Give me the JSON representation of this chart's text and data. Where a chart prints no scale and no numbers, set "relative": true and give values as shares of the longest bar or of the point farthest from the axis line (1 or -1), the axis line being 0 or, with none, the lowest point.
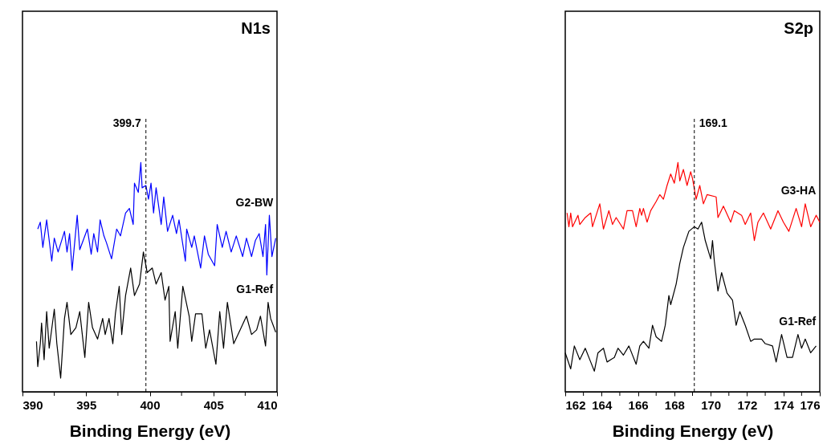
{
  "chart_data": [
    {
      "type": "line",
      "title": "N1s",
      "xlabel": "Binding Energy (eV)",
      "relative": true,
      "grid": false,
      "line_style": "solid",
      "marker": "none",
      "xlim": [
        390,
        410
      ],
      "xticks": [
        390,
        {
          "value": 392.5,
          "label": null
        },
        395,
        {
          "value": 397.5,
          "label": null
        },
        400,
        {
          "value": 402.5,
          "label": null
        },
        405,
        {
          "value": 407.5,
          "label": null
        },
        410
      ],
      "ref_lines": [
        {
          "axis": "x",
          "value": 399.7,
          "label": "399.7",
          "line_style": "dashed",
          "color": "#000000"
        }
      ],
      "series": [
        {
          "name": "G2-BW",
          "color": "#0000ff",
          "x": [
            391.2,
            391.4,
            391.6,
            391.9,
            392.3,
            392.5,
            392.8,
            393.3,
            393.5,
            393.7,
            393.9,
            394.3,
            394.5,
            395.1,
            395.4,
            395.6,
            395.9,
            396.1,
            396.4,
            396.6,
            397.0,
            397.4,
            397.7,
            398.1,
            398.4,
            398.7,
            398.8,
            399.1,
            399.3,
            399.4,
            399.7,
            399.9,
            400.1,
            400.3,
            400.5,
            400.9,
            401.1,
            401.4,
            401.8,
            402.1,
            402.3,
            402.8,
            402.9,
            403.3,
            403.5,
            404.0,
            404.3,
            404.6,
            405.1,
            405.3,
            405.7,
            406.0,
            406.4,
            406.8,
            407.3,
            407.6,
            408.0,
            408.3,
            408.6,
            408.9,
            409.1,
            409.2,
            409.4,
            409.6,
            409.9
          ],
          "values": [
            0.71,
            0.74,
            0.63,
            0.75,
            0.57,
            0.67,
            0.61,
            0.7,
            0.61,
            0.69,
            0.53,
            0.77,
            0.62,
            0.71,
            0.6,
            0.69,
            0.61,
            0.75,
            0.68,
            0.65,
            0.58,
            0.71,
            0.68,
            0.78,
            0.8,
            0.73,
            0.91,
            0.87,
            1.0,
            0.89,
            0.9,
            0.84,
            0.91,
            0.78,
            0.89,
            0.73,
            0.85,
            0.7,
            0.77,
            0.69,
            0.75,
            0.57,
            0.71,
            0.63,
            0.68,
            0.54,
            0.68,
            0.6,
            0.55,
            0.73,
            0.63,
            0.7,
            0.61,
            0.68,
            0.59,
            0.67,
            0.59,
            0.66,
            0.69,
            0.59,
            0.73,
            0.51,
            0.77,
            0.59,
            0.67
          ]
        },
        {
          "name": "G1-Ref",
          "color": "#000000",
          "x": [
            391.1,
            391.2,
            391.4,
            391.5,
            391.7,
            391.9,
            392.1,
            392.5,
            392.7,
            393.0,
            393.3,
            393.5,
            393.8,
            394.2,
            394.5,
            394.9,
            395.2,
            395.5,
            395.9,
            396.3,
            396.5,
            396.8,
            397.1,
            397.3,
            397.6,
            397.8,
            398.1,
            398.5,
            398.8,
            399.2,
            399.5,
            399.8,
            400.2,
            400.5,
            400.9,
            401.2,
            401.5,
            401.6,
            402.0,
            402.2,
            402.6,
            403.1,
            403.3,
            403.6,
            404.1,
            404.4,
            404.7,
            405.2,
            405.5,
            405.8,
            406.1,
            406.6,
            407.1,
            407.6,
            408.0,
            408.4,
            408.7,
            409.1,
            409.3,
            409.5,
            409.9
          ],
          "values": [
            0.22,
            0.11,
            0.21,
            0.3,
            0.14,
            0.35,
            0.19,
            0.36,
            0.21,
            0.06,
            0.32,
            0.39,
            0.25,
            0.28,
            0.35,
            0.15,
            0.39,
            0.28,
            0.23,
            0.32,
            0.25,
            0.32,
            0.21,
            0.34,
            0.46,
            0.25,
            0.42,
            0.54,
            0.42,
            0.47,
            0.61,
            0.52,
            0.54,
            0.47,
            0.52,
            0.4,
            0.46,
            0.22,
            0.35,
            0.19,
            0.46,
            0.33,
            0.22,
            0.34,
            0.34,
            0.19,
            0.27,
            0.12,
            0.35,
            0.19,
            0.39,
            0.21,
            0.27,
            0.33,
            0.25,
            0.27,
            0.33,
            0.2,
            0.39,
            0.32,
            0.26
          ]
        }
      ]
    },
    {
      "type": "line",
      "title": "S2p",
      "xlabel": "Binding Energy (eV)",
      "relative": true,
      "grid": false,
      "line_style": "solid",
      "marker": "none",
      "xlim": [
        162,
        176
      ],
      "xticks": [
        162,
        {
          "value": 163,
          "label": null
        },
        164,
        {
          "value": 165,
          "label": null
        },
        166,
        {
          "value": 167,
          "label": null
        },
        168,
        {
          "value": 169,
          "label": null
        },
        170,
        {
          "value": 171,
          "label": null
        },
        172,
        {
          "value": 173,
          "label": null
        },
        174,
        {
          "value": 175,
          "label": null
        },
        176
      ],
      "ref_lines": [
        {
          "axis": "x",
          "value": 169.1,
          "label": "169.1",
          "line_style": "dashed",
          "color": "#000000"
        }
      ],
      "series": [
        {
          "name": "G3-HA",
          "color": "#ff0000",
          "x": [
            162.1,
            162.2,
            162.3,
            162.4,
            162.7,
            162.8,
            163.1,
            163.4,
            163.5,
            163.9,
            164.1,
            164.4,
            164.6,
            164.8,
            165.2,
            165.4,
            165.7,
            165.9,
            166.1,
            166.2,
            166.3,
            166.5,
            166.7,
            167.0,
            167.2,
            167.4,
            167.6,
            167.8,
            168.0,
            168.2,
            168.3,
            168.5,
            168.7,
            168.9,
            169.0,
            169.2,
            169.4,
            169.6,
            169.8,
            170.3,
            170.4,
            170.7,
            171.1,
            171.3,
            171.7,
            171.9,
            172.2,
            172.4,
            172.6,
            172.9,
            173.3,
            173.7,
            174.0,
            174.3,
            174.7,
            175.0,
            175.2,
            175.5,
            175.8,
            176.0
          ],
          "values": [
            0.78,
            0.72,
            0.78,
            0.72,
            0.77,
            0.73,
            0.76,
            0.78,
            0.72,
            0.82,
            0.71,
            0.79,
            0.73,
            0.76,
            0.71,
            0.79,
            0.79,
            0.72,
            0.8,
            0.77,
            0.8,
            0.74,
            0.79,
            0.83,
            0.86,
            0.84,
            0.9,
            0.95,
            0.91,
            1.0,
            0.92,
            0.97,
            0.9,
            0.96,
            0.93,
            0.84,
            0.9,
            0.82,
            0.86,
            0.85,
            0.76,
            0.81,
            0.74,
            0.79,
            0.77,
            0.73,
            0.78,
            0.66,
            0.74,
            0.78,
            0.71,
            0.79,
            0.74,
            0.7,
            0.8,
            0.72,
            0.82,
            0.72,
            0.77,
            0.74
          ]
        },
        {
          "name": "G1-Ref",
          "color": "#000000",
          "x": [
            162.0,
            162.3,
            162.5,
            162.8,
            163.1,
            163.4,
            163.6,
            163.8,
            164.1,
            164.3,
            164.7,
            164.9,
            165.2,
            165.5,
            165.9,
            166.1,
            166.3,
            166.6,
            166.8,
            167.0,
            167.3,
            167.5,
            167.7,
            167.8,
            168.1,
            168.3,
            168.5,
            168.8,
            169.1,
            169.3,
            169.5,
            169.7,
            170.0,
            170.1,
            170.2,
            170.4,
            170.6,
            170.9,
            171.2,
            171.4,
            171.6,
            171.9,
            172.2,
            172.4,
            172.8,
            173.0,
            173.4,
            173.6,
            173.9,
            174.2,
            174.5,
            174.8,
            175.0,
            175.2,
            175.5,
            175.8
          ],
          "values": [
            0.17,
            0.1,
            0.2,
            0.14,
            0.19,
            0.13,
            0.09,
            0.17,
            0.19,
            0.13,
            0.15,
            0.19,
            0.16,
            0.2,
            0.12,
            0.2,
            0.22,
            0.19,
            0.29,
            0.24,
            0.22,
            0.29,
            0.42,
            0.38,
            0.47,
            0.56,
            0.63,
            0.7,
            0.72,
            0.71,
            0.74,
            0.66,
            0.58,
            0.66,
            0.57,
            0.44,
            0.52,
            0.43,
            0.4,
            0.29,
            0.35,
            0.29,
            0.22,
            0.23,
            0.23,
            0.21,
            0.2,
            0.13,
            0.25,
            0.15,
            0.15,
            0.25,
            0.19,
            0.23,
            0.17,
            0.2
          ]
        }
      ]
    }
  ]
}
